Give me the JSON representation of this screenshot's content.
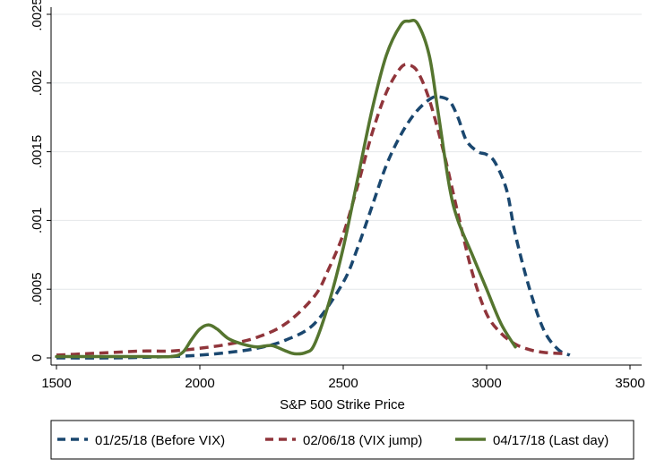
{
  "chart_data": {
    "type": "line",
    "title": "",
    "xlabel": "S&P 500 Strike Price",
    "ylabel": "",
    "xlim": [
      1500,
      3500
    ],
    "ylim": [
      0,
      0.0025
    ],
    "grid": true,
    "legend_position": "bottom",
    "x_ticks": [
      {
        "value": 1500,
        "label": "1500"
      },
      {
        "value": 2000,
        "label": "2000"
      },
      {
        "value": 2500,
        "label": "2500"
      },
      {
        "value": 3000,
        "label": "3000"
      },
      {
        "value": 3500,
        "label": "3500"
      }
    ],
    "y_ticks": [
      {
        "value": 0,
        "label": "0"
      },
      {
        "value": 0.0005,
        "label": ".0005"
      },
      {
        "value": 0.001,
        "label": ".001"
      },
      {
        "value": 0.0015,
        "label": ".0015"
      },
      {
        "value": 0.002,
        "label": ".002"
      },
      {
        "value": 0.0025,
        "label": ".0025"
      }
    ],
    "series": [
      {
        "name": "01/25/18 (Before VIX)",
        "color": "#1a476f",
        "style": "dashed",
        "points": [
          [
            1500,
            0.0
          ],
          [
            1700,
            0.0
          ],
          [
            1900,
            1e-05
          ],
          [
            2000,
            2e-05
          ],
          [
            2100,
            4e-05
          ],
          [
            2200,
            7e-05
          ],
          [
            2300,
            0.00013
          ],
          [
            2400,
            0.00025
          ],
          [
            2500,
            0.00055
          ],
          [
            2550,
            0.0008
          ],
          [
            2600,
            0.0011
          ],
          [
            2650,
            0.0014
          ],
          [
            2700,
            0.00162
          ],
          [
            2750,
            0.00178
          ],
          [
            2800,
            0.00188
          ],
          [
            2830,
            0.0019
          ],
          [
            2870,
            0.00187
          ],
          [
            2900,
            0.00175
          ],
          [
            2930,
            0.00158
          ],
          [
            2970,
            0.0015
          ],
          [
            3000,
            0.00148
          ],
          [
            3030,
            0.00142
          ],
          [
            3070,
            0.00122
          ],
          [
            3100,
            0.0009
          ],
          [
            3150,
            0.0005
          ],
          [
            3200,
            0.0002
          ],
          [
            3250,
            6e-05
          ],
          [
            3290,
            2e-05
          ]
        ]
      },
      {
        "name": "02/06/18 (VIX jump)",
        "color": "#90353b",
        "style": "dashed",
        "points": [
          [
            1500,
            2e-05
          ],
          [
            1600,
            3e-05
          ],
          [
            1700,
            4e-05
          ],
          [
            1800,
            5e-05
          ],
          [
            1900,
            5e-05
          ],
          [
            2000,
            7e-05
          ],
          [
            2100,
            0.0001
          ],
          [
            2200,
            0.00015
          ],
          [
            2300,
            0.00025
          ],
          [
            2400,
            0.00045
          ],
          [
            2450,
            0.00065
          ],
          [
            2500,
            0.0009
          ],
          [
            2550,
            0.00125
          ],
          [
            2600,
            0.00163
          ],
          [
            2650,
            0.00193
          ],
          [
            2700,
            0.00211
          ],
          [
            2730,
            0.00213
          ],
          [
            2760,
            0.00208
          ],
          [
            2800,
            0.00188
          ],
          [
            2850,
            0.0015
          ],
          [
            2900,
            0.00105
          ],
          [
            2950,
            0.00062
          ],
          [
            3000,
            0.00032
          ],
          [
            3050,
            0.00018
          ],
          [
            3100,
            0.0001
          ],
          [
            3150,
            6e-05
          ],
          [
            3200,
            4e-05
          ],
          [
            3280,
            3e-05
          ]
        ]
      },
      {
        "name": "04/17/18 (Last day)",
        "color": "#55752f",
        "style": "solid",
        "points": [
          [
            1500,
            1e-05
          ],
          [
            1800,
            1e-05
          ],
          [
            1900,
            1e-05
          ],
          [
            1940,
            4e-05
          ],
          [
            1970,
            0.00013
          ],
          [
            2000,
            0.00021
          ],
          [
            2030,
            0.00024
          ],
          [
            2060,
            0.00021
          ],
          [
            2100,
            0.00014
          ],
          [
            2150,
            0.0001
          ],
          [
            2200,
            8e-05
          ],
          [
            2250,
            9e-05
          ],
          [
            2300,
            5e-05
          ],
          [
            2330,
            3e-05
          ],
          [
            2370,
            4e-05
          ],
          [
            2400,
            0.0001
          ],
          [
            2450,
            0.0004
          ],
          [
            2500,
            0.0008
          ],
          [
            2550,
            0.0013
          ],
          [
            2600,
            0.0018
          ],
          [
            2650,
            0.0022
          ],
          [
            2700,
            0.00242
          ],
          [
            2730,
            0.00245
          ],
          [
            2760,
            0.00243
          ],
          [
            2800,
            0.0022
          ],
          [
            2830,
            0.0018
          ],
          [
            2870,
            0.00125
          ],
          [
            2900,
            0.001
          ],
          [
            2950,
            0.00075
          ],
          [
            3000,
            0.0005
          ],
          [
            3050,
            0.00025
          ],
          [
            3100,
            8e-05
          ]
        ]
      }
    ]
  }
}
